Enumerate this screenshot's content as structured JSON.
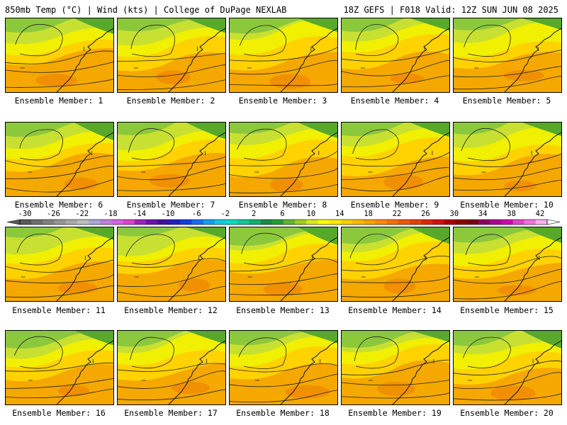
{
  "header": {
    "left": "850mb Temp (°C) | Wind (kts) | College of DuPage NEXLAB",
    "right": "18Z GEFS | F018 Valid: 12Z SUN JUN 08 2025"
  },
  "panels": [
    {
      "member": 1,
      "label": "Ensemble Member: 1"
    },
    {
      "member": 2,
      "label": "Ensemble Member: 2"
    },
    {
      "member": 3,
      "label": "Ensemble Member: 3"
    },
    {
      "member": 4,
      "label": "Ensemble Member: 4"
    },
    {
      "member": 5,
      "label": "Ensemble Member: 5"
    },
    {
      "member": 6,
      "label": "Ensemble Member: 6"
    },
    {
      "member": 7,
      "label": "Ensemble Member: 7"
    },
    {
      "member": 8,
      "label": "Ensemble Member: 8"
    },
    {
      "member": 9,
      "label": "Ensemble Member: 9"
    },
    {
      "member": 10,
      "label": "Ensemble Member: 10"
    },
    {
      "member": 11,
      "label": "Ensemble Member: 11"
    },
    {
      "member": 12,
      "label": "Ensemble Member: 12"
    },
    {
      "member": 13,
      "label": "Ensemble Member: 13"
    },
    {
      "member": 14,
      "label": "Ensemble Member: 14"
    },
    {
      "member": 15,
      "label": "Ensemble Member: 15"
    },
    {
      "member": 16,
      "label": "Ensemble Member: 16"
    },
    {
      "member": 17,
      "label": "Ensemble Member: 17"
    },
    {
      "member": 18,
      "label": "Ensemble Member: 18"
    },
    {
      "member": 19,
      "label": "Ensemble Member: 19"
    },
    {
      "member": 20,
      "label": "Ensemble Member: 20"
    }
  ],
  "colorbar": {
    "ticks": [
      "-30",
      "-26",
      "-22",
      "-18",
      "-14",
      "-10",
      "-6",
      "-2",
      "2",
      "6",
      "10",
      "14",
      "18",
      "22",
      "26",
      "30",
      "34",
      "38",
      "42"
    ],
    "colors": [
      "#5a5a5a",
      "#6e6e6e",
      "#828282",
      "#969696",
      "#aaaaaa",
      "#bebebe",
      "#a8a8d8",
      "#c080e0",
      "#d860e8",
      "#e040d0",
      "#a020c0",
      "#7010b0",
      "#4010a0",
      "#2020c0",
      "#1040e0",
      "#1070f0",
      "#10a0f0",
      "#10c8e8",
      "#10d8c0",
      "#10c898",
      "#10b070",
      "#109040",
      "#20a030",
      "#60b828",
      "#a0d020",
      "#d8e820",
      "#ffff00",
      "#ffe800",
      "#ffd000",
      "#ffb800",
      "#ffa000",
      "#ff8800",
      "#f87000",
      "#f05800",
      "#e84000",
      "#e02800",
      "#d01010",
      "#b00000",
      "#900000",
      "#800010",
      "#900060",
      "#b00090",
      "#d000b0",
      "#e840c8",
      "#f870e0",
      "#ffb0f0"
    ]
  },
  "map_colors": {
    "dark_green": "#58a82c",
    "green": "#8cc83c",
    "yellow_green": "#c8e032",
    "yellow": "#f0f000",
    "gold": "#ffd200",
    "orange": "#f5a800",
    "dark_orange": "#ee8c00"
  }
}
